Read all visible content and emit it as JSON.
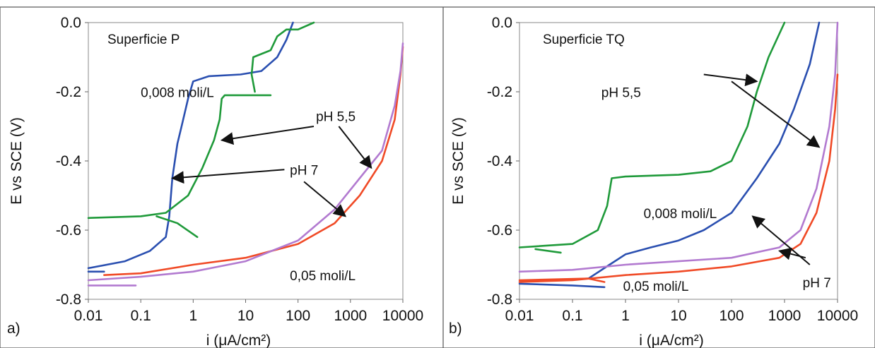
{
  "colors": {
    "blue": "#2a4fb0",
    "green": "#1f9a3a",
    "red": "#f04a26",
    "purple": "#b27ad0",
    "frame": "#555555"
  },
  "chart_data": [
    {
      "type": "line",
      "panel_label": "a)",
      "title": "Superficie P",
      "xlabel": "i (μA/cm²)",
      "ylabel": "E vs SCE (V)",
      "x_scale": "log",
      "xlim": [
        0.01,
        10000
      ],
      "ylim": [
        -0.8,
        0.0
      ],
      "x_ticks": [
        "0.01",
        "0.1",
        "1",
        "10",
        "100",
        "1000",
        "10000"
      ],
      "y_ticks": [
        "0.0",
        "-0.2",
        "-0.4",
        "-0.6",
        "-0.8"
      ],
      "grid": false,
      "series": [
        {
          "color_key": "blue",
          "points": [
            [
              0.01,
              -0.71
            ],
            [
              0.05,
              -0.69
            ],
            [
              0.15,
              -0.66
            ],
            [
              0.3,
              -0.62
            ],
            [
              0.35,
              -0.56
            ],
            [
              0.4,
              -0.45
            ],
            [
              0.5,
              -0.35
            ],
            [
              0.6,
              -0.3
            ],
            [
              0.8,
              -0.22
            ],
            [
              1.0,
              -0.17
            ],
            [
              2,
              -0.155
            ],
            [
              8,
              -0.15
            ],
            [
              20,
              -0.14
            ],
            [
              40,
              -0.1
            ],
            [
              60,
              -0.05
            ],
            [
              80,
              0.0
            ]
          ]
        },
        {
          "color_key": "blue",
          "points": [
            [
              0.01,
              -0.72
            ],
            [
              0.02,
              -0.72
            ]
          ]
        },
        {
          "color_key": "green",
          "points": [
            [
              0.01,
              -0.565
            ],
            [
              0.1,
              -0.56
            ],
            [
              0.3,
              -0.55
            ],
            [
              0.8,
              -0.5
            ],
            [
              1.5,
              -0.42
            ],
            [
              2.5,
              -0.34
            ],
            [
              3.2,
              -0.28
            ],
            [
              3.5,
              -0.22
            ],
            [
              4,
              -0.21
            ],
            [
              10,
              -0.21
            ],
            [
              30,
              -0.21
            ]
          ]
        },
        {
          "color_key": "green",
          "points": [
            [
              0.2,
              -0.56
            ],
            [
              0.5,
              -0.58
            ],
            [
              1.2,
              -0.62
            ]
          ]
        },
        {
          "color_key": "green",
          "points": [
            [
              15,
              -0.2
            ],
            [
              13,
              -0.15
            ],
            [
              14,
              -0.1
            ],
            [
              30,
              -0.08
            ],
            [
              40,
              -0.04
            ],
            [
              60,
              -0.02
            ],
            [
              100,
              -0.02
            ],
            [
              200,
              0.0
            ]
          ]
        },
        {
          "color_key": "red",
          "points": [
            [
              0.02,
              -0.73
            ],
            [
              0.1,
              -0.725
            ],
            [
              1,
              -0.7
            ],
            [
              10,
              -0.68
            ],
            [
              100,
              -0.64
            ],
            [
              500,
              -0.58
            ],
            [
              1500,
              -0.5
            ],
            [
              4000,
              -0.4
            ],
            [
              7000,
              -0.28
            ],
            [
              9000,
              -0.15
            ],
            [
              10000,
              -0.07
            ]
          ]
        },
        {
          "color_key": "purple",
          "points": [
            [
              0.01,
              -0.745
            ],
            [
              0.1,
              -0.735
            ],
            [
              1,
              -0.72
            ],
            [
              10,
              -0.69
            ],
            [
              100,
              -0.63
            ],
            [
              500,
              -0.54
            ],
            [
              1500,
              -0.45
            ],
            [
              4000,
              -0.37
            ],
            [
              7000,
              -0.24
            ],
            [
              9000,
              -0.14
            ],
            [
              10000,
              -0.06
            ]
          ]
        },
        {
          "color_key": "purple",
          "points": [
            [
              0.01,
              -0.76
            ],
            [
              0.05,
              -0.76
            ],
            [
              0.08,
              -0.76
            ]
          ]
        }
      ],
      "annotations": [
        {
          "text": "0,008 moli/L",
          "x": 0.1,
          "y": -0.215
        },
        {
          "text": "pH 5,5",
          "x": 220,
          "y": -0.285
        },
        {
          "text": "pH 7",
          "x": 70,
          "y": -0.44
        },
        {
          "text": "0,05 moli/L",
          "x": 70,
          "y": -0.745
        }
      ],
      "arrows": [
        {
          "from": [
            200,
            -0.3
          ],
          "to": [
            3.5,
            -0.34
          ]
        },
        {
          "from": [
            600,
            -0.3
          ],
          "to": [
            2500,
            -0.42
          ]
        },
        {
          "from": [
            55,
            -0.425
          ],
          "to": [
            0.4,
            -0.45
          ]
        },
        {
          "from": [
            130,
            -0.46
          ],
          "to": [
            800,
            -0.56
          ]
        }
      ]
    },
    {
      "type": "line",
      "panel_label": "b)",
      "title": "Superficie TQ",
      "xlabel": "i (μA/cm²)",
      "ylabel": "E vs SCE (V)",
      "x_scale": "log",
      "xlim": [
        0.01,
        10000
      ],
      "ylim": [
        -0.8,
        0.0
      ],
      "x_ticks": [
        "0.01",
        "0.1",
        "1",
        "10",
        "100",
        "1000",
        "10000"
      ],
      "y_ticks": [
        "0.0",
        "-0.2",
        "-0.4",
        "-0.6",
        "-0.8"
      ],
      "grid": false,
      "series": [
        {
          "color_key": "green",
          "points": [
            [
              0.01,
              -0.65
            ],
            [
              0.1,
              -0.64
            ],
            [
              0.3,
              -0.6
            ],
            [
              0.45,
              -0.53
            ],
            [
              0.55,
              -0.45
            ],
            [
              1,
              -0.445
            ],
            [
              10,
              -0.44
            ],
            [
              40,
              -0.43
            ],
            [
              100,
              -0.4
            ],
            [
              200,
              -0.3
            ],
            [
              300,
              -0.2
            ],
            [
              500,
              -0.1
            ],
            [
              1000,
              0.0
            ]
          ]
        },
        {
          "color_key": "green",
          "points": [
            [
              0.02,
              -0.655
            ],
            [
              0.06,
              -0.665
            ]
          ]
        },
        {
          "color_key": "blue",
          "points": [
            [
              0.01,
              -0.75
            ],
            [
              0.2,
              -0.74
            ],
            [
              0.5,
              -0.7
            ],
            [
              1,
              -0.67
            ],
            [
              3,
              -0.65
            ],
            [
              10,
              -0.63
            ],
            [
              30,
              -0.6
            ],
            [
              100,
              -0.55
            ],
            [
              300,
              -0.45
            ],
            [
              800,
              -0.35
            ],
            [
              1500,
              -0.25
            ],
            [
              3000,
              -0.12
            ],
            [
              4500,
              0.0
            ]
          ]
        },
        {
          "color_key": "blue",
          "points": [
            [
              0.01,
              -0.755
            ],
            [
              0.1,
              -0.76
            ],
            [
              0.4,
              -0.765
            ]
          ]
        },
        {
          "color_key": "red",
          "points": [
            [
              0.01,
              -0.75
            ],
            [
              0.1,
              -0.745
            ],
            [
              1,
              -0.73
            ],
            [
              10,
              -0.72
            ],
            [
              100,
              -0.705
            ],
            [
              800,
              -0.68
            ],
            [
              2000,
              -0.64
            ],
            [
              4000,
              -0.55
            ],
            [
              7000,
              -0.4
            ],
            [
              9000,
              -0.25
            ],
            [
              10000,
              -0.15
            ]
          ]
        },
        {
          "color_key": "red",
          "points": [
            [
              0.01,
              -0.745
            ],
            [
              0.2,
              -0.74
            ],
            [
              0.4,
              -0.75
            ]
          ]
        },
        {
          "color_key": "purple",
          "points": [
            [
              0.01,
              -0.72
            ],
            [
              0.1,
              -0.715
            ],
            [
              1,
              -0.7
            ],
            [
              10,
              -0.69
            ],
            [
              100,
              -0.68
            ],
            [
              800,
              -0.65
            ],
            [
              2000,
              -0.6
            ],
            [
              4000,
              -0.48
            ],
            [
              7000,
              -0.3
            ],
            [
              9000,
              -0.15
            ],
            [
              10000,
              0.0
            ]
          ]
        }
      ],
      "annotations": [
        {
          "text": "pH 5,5",
          "x": 0.35,
          "y": -0.215
        },
        {
          "text": "0,008 moli/L",
          "x": 2.2,
          "y": -0.565
        },
        {
          "text": "pH 7",
          "x": 2200,
          "y": -0.765
        },
        {
          "text": "0,05 moli/L",
          "x": 0.9,
          "y": -0.775
        }
      ],
      "arrows": [
        {
          "from": [
            30,
            -0.15
          ],
          "to": [
            300,
            -0.17
          ]
        },
        {
          "from": [
            100,
            -0.17
          ],
          "to": [
            4500,
            -0.36
          ]
        },
        {
          "from": [
            3000,
            -0.7
          ],
          "to": [
            250,
            -0.56
          ]
        },
        {
          "from": [
            2500,
            -0.68
          ],
          "to": [
            800,
            -0.66
          ]
        }
      ]
    }
  ]
}
